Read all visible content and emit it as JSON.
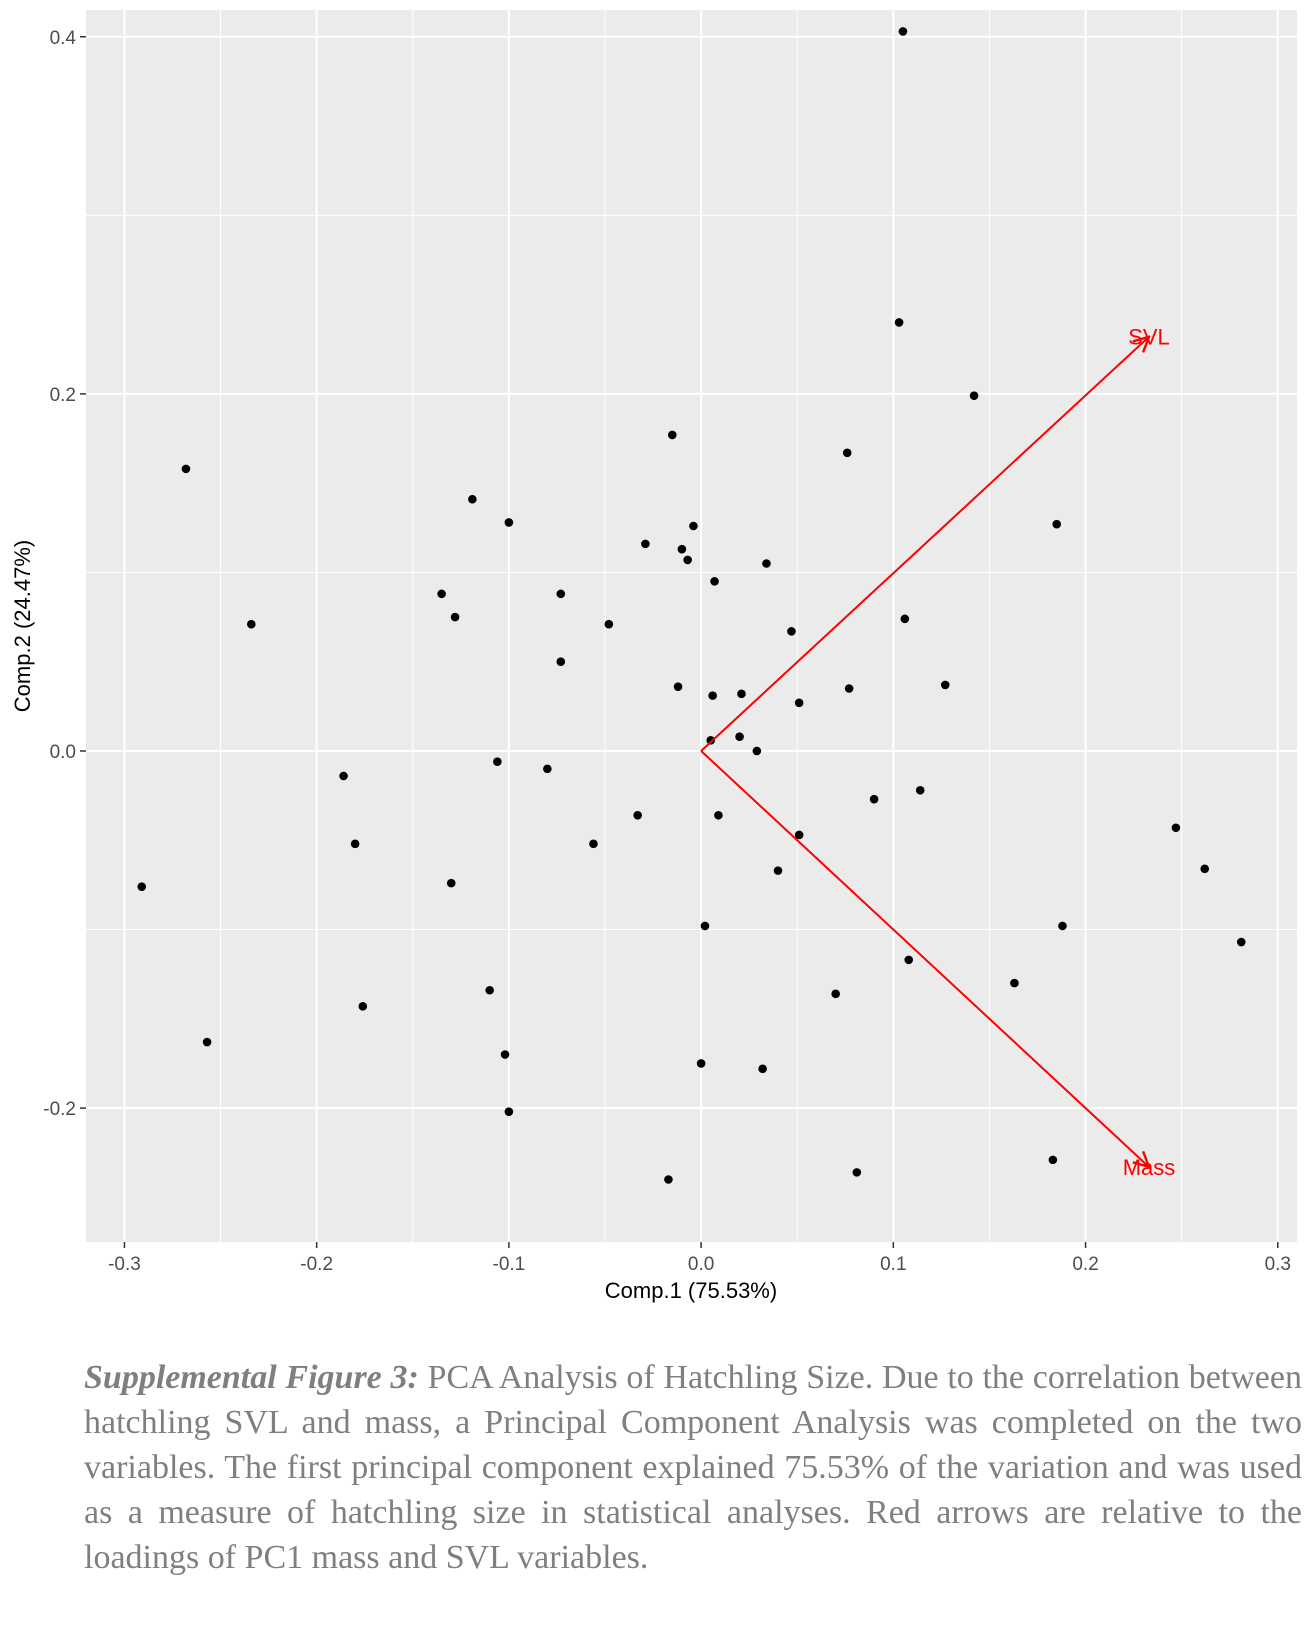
{
  "chart_data": {
    "type": "scatter",
    "xlabel": "Comp.1 (75.53%)",
    "ylabel": "Comp.2 (24.47%)",
    "xlim": [
      -0.32,
      0.31
    ],
    "ylim": [
      -0.275,
      0.415
    ],
    "x_ticks": [
      -0.3,
      -0.2,
      -0.1,
      0.0,
      0.1,
      0.2,
      0.3
    ],
    "x_tick_labels": [
      "-0.3",
      "-0.2",
      "-0.1",
      "0.0",
      "0.1",
      "0.2",
      "0.3"
    ],
    "y_ticks": [
      -0.2,
      0.0,
      0.2,
      0.4
    ],
    "y_tick_labels": [
      "-0.2",
      "0.0",
      "0.2",
      "0.4"
    ],
    "grid": true,
    "panel_background": "#ebebeb",
    "point_color": "#000000",
    "arrow_color": "#ff0000",
    "points": [
      [
        0.105,
        0.403
      ],
      [
        0.103,
        0.24
      ],
      [
        0.142,
        0.199
      ],
      [
        0.076,
        0.167
      ],
      [
        0.185,
        0.127
      ],
      [
        -0.015,
        0.177
      ],
      [
        -0.268,
        0.158
      ],
      [
        -0.119,
        0.141
      ],
      [
        -0.1,
        0.128
      ],
      [
        -0.004,
        0.126
      ],
      [
        -0.029,
        0.116
      ],
      [
        -0.01,
        0.113
      ],
      [
        -0.007,
        0.107
      ],
      [
        0.034,
        0.105
      ],
      [
        0.007,
        0.095
      ],
      [
        -0.135,
        0.088
      ],
      [
        -0.073,
        0.088
      ],
      [
        -0.128,
        0.075
      ],
      [
        -0.234,
        0.071
      ],
      [
        -0.048,
        0.071
      ],
      [
        0.106,
        0.074
      ],
      [
        0.047,
        0.067
      ],
      [
        -0.073,
        0.05
      ],
      [
        -0.012,
        0.036
      ],
      [
        0.006,
        0.031
      ],
      [
        0.021,
        0.032
      ],
      [
        0.077,
        0.035
      ],
      [
        0.127,
        0.037
      ],
      [
        0.051,
        0.027
      ],
      [
        0.005,
        0.006
      ],
      [
        0.02,
        0.008
      ],
      [
        0.029,
        0.0
      ],
      [
        -0.186,
        -0.014
      ],
      [
        -0.106,
        -0.006
      ],
      [
        -0.08,
        -0.01
      ],
      [
        0.114,
        -0.022
      ],
      [
        0.09,
        -0.027
      ],
      [
        -0.033,
        -0.036
      ],
      [
        0.009,
        -0.036
      ],
      [
        0.051,
        -0.047
      ],
      [
        0.247,
        -0.043
      ],
      [
        -0.18,
        -0.052
      ],
      [
        -0.056,
        -0.052
      ],
      [
        0.04,
        -0.067
      ],
      [
        0.262,
        -0.066
      ],
      [
        -0.291,
        -0.076
      ],
      [
        -0.13,
        -0.074
      ],
      [
        0.002,
        -0.098
      ],
      [
        0.188,
        -0.098
      ],
      [
        0.281,
        -0.107
      ],
      [
        0.108,
        -0.117
      ],
      [
        0.163,
        -0.13
      ],
      [
        -0.11,
        -0.134
      ],
      [
        0.07,
        -0.136
      ],
      [
        -0.176,
        -0.143
      ],
      [
        -0.257,
        -0.163
      ],
      [
        -0.102,
        -0.17
      ],
      [
        0.0,
        -0.175
      ],
      [
        0.032,
        -0.178
      ],
      [
        -0.1,
        -0.202
      ],
      [
        0.183,
        -0.229
      ],
      [
        0.081,
        -0.236
      ],
      [
        -0.017,
        -0.24
      ]
    ],
    "arrows": [
      {
        "label": "SVL",
        "x": 0.233,
        "y": 0.232
      },
      {
        "label": "Mass",
        "x": 0.233,
        "y": -0.233
      }
    ]
  },
  "caption": {
    "label": "Supplemental Figure 3:",
    "text": " PCA Analysis of Hatchling Size. Due to the correlation between hatchling SVL and mass, a Principal Component Analysis was completed on the two variables. The first principal component explained 75.53% of the variation and was used as a measure of hatchling size in statistical analyses.   Red arrows are relative to the loadings of PC1 mass and SVL variables."
  }
}
